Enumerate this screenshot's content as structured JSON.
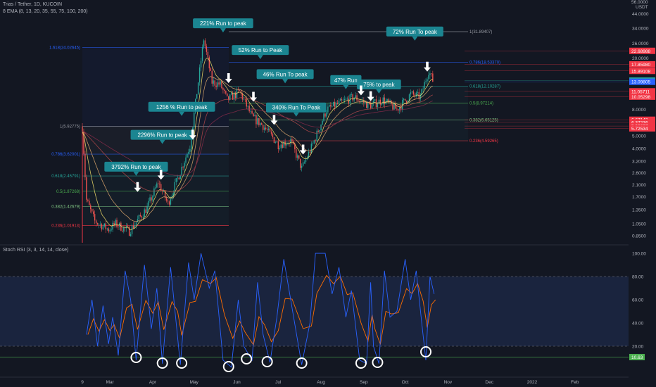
{
  "header": {
    "symbol": "Trias / Tether, 1D, KUCOIN",
    "ema": "8 EMA (8, 13, 20, 35, 55, 75, 100, 200)",
    "stoch_title": "Stoch RSI (3, 3, 14, 14, close)"
  },
  "colors": {
    "bg": "#131722",
    "up": "#26a69a",
    "down": "#ef5350",
    "callout": "#1b8591",
    "fib_blue": "#2962ff",
    "stoch_k": "#2962ff",
    "stoch_d": "#ff6d00",
    "stoch_band": "#1e2a48"
  },
  "chart_data": [
    {
      "type": "candlestick",
      "scale": "log",
      "ylim": [
        0.75,
        56
      ],
      "currency": "USDT",
      "top_tick": "56.0000",
      "y_ticks": [
        "44.0000",
        "34.0000",
        "26.0000",
        "20.0000",
        "16.0000",
        "13.0000",
        "10.0000",
        "8.0000",
        "6.0000",
        "5.0000",
        "4.0000",
        "3.2000",
        "2.6000",
        "2.1000",
        "1.7000",
        "1.3500",
        "1.0500",
        "0.8500"
      ],
      "x_ticks": [
        "9",
        "Mar",
        "Apr",
        "May",
        "Jun",
        "Jul",
        "Aug",
        "Sep",
        "Oct",
        "Nov",
        "Dec",
        "2022",
        "Feb"
      ],
      "price_path": [
        [
          "2021-02-09",
          5.9
        ],
        [
          "2021-02-12",
          1.6
        ],
        [
          "2021-02-18",
          1.1
        ],
        [
          "2021-02-28",
          0.95
        ],
        [
          "2021-03-05",
          1.05
        ],
        [
          "2021-03-15",
          0.92
        ],
        [
          "2021-03-28",
          1.4
        ],
        [
          "2021-04-05",
          2.2
        ],
        [
          "2021-04-12",
          1.5
        ],
        [
          "2021-04-20",
          2.5
        ],
        [
          "2021-04-28",
          4.2
        ],
        [
          "2021-05-08",
          28
        ],
        [
          "2021-05-14",
          13
        ],
        [
          "2021-05-20",
          12.5
        ],
        [
          "2021-05-25",
          9.5
        ],
        [
          "2021-06-03",
          11
        ],
        [
          "2021-06-12",
          7
        ],
        [
          "2021-06-20",
          6
        ],
        [
          "2021-07-01",
          4.3
        ],
        [
          "2021-07-10",
          4.6
        ],
        [
          "2021-07-18",
          2.8
        ],
        [
          "2021-07-26",
          4.3
        ],
        [
          "2021-08-05",
          8
        ],
        [
          "2021-08-15",
          9
        ],
        [
          "2021-08-25",
          10
        ],
        [
          "2021-09-05",
          8.6
        ],
        [
          "2021-09-15",
          9.5
        ],
        [
          "2021-09-25",
          8
        ],
        [
          "2021-10-05",
          10.5
        ],
        [
          "2021-10-12",
          10
        ],
        [
          "2021-10-18",
          16
        ],
        [
          "2021-10-21",
          13.4
        ]
      ],
      "fib_left": [
        {
          "label": "1.618(24.02645)",
          "value": 24.02645,
          "color": "#2962ff"
        },
        {
          "label": "1(5.92775)",
          "value": 5.92775,
          "color": "#9598a1"
        },
        {
          "label": "0.786(3.62001)",
          "value": 3.62001,
          "color": "#2962ff"
        },
        {
          "label": "0.618(2.45791)",
          "value": 2.45791,
          "color": "#26a69a"
        },
        {
          "label": "0.5(1.87268)",
          "value": 1.87268,
          "color": "#4caf50"
        },
        {
          "label": "0.382(1.42679)",
          "value": 1.42679,
          "color": "#81c784"
        },
        {
          "label": "0.236(1.01913)",
          "value": 1.01913,
          "color": "#f23645"
        }
      ],
      "fib_right": [
        {
          "label": "1(31.89407)",
          "value": 31.89407,
          "color": "#9598a1"
        },
        {
          "label": "0.786(18.53370)",
          "value": 18.5337,
          "color": "#2962ff"
        },
        {
          "label": "0.618(12.10287)",
          "value": 12.10287,
          "color": "#26a69a"
        },
        {
          "label": "0.5(8.97214)",
          "value": 8.97214,
          "color": "#4caf50"
        },
        {
          "label": "0.382(6.65125)",
          "value": 6.65125,
          "color": "#81c784"
        },
        {
          "label": "0.236(4.59265)",
          "value": 4.59265,
          "color": "#f23645"
        }
      ],
      "price_labels": [
        {
          "text": "22.68988",
          "value": 22.68988,
          "color": "#f23645"
        },
        {
          "text": "17.85980",
          "value": 17.8598,
          "color": "#f23645"
        },
        {
          "text": "15.89108",
          "value": 15.89108,
          "color": "#f23645"
        },
        {
          "text": "13.37978",
          "value": 13.37978,
          "color": "#26a69a"
        },
        {
          "text": "13.09805",
          "value": 13.09805,
          "color": "#2962ff"
        },
        {
          "text": "11.05711",
          "value": 11.05711,
          "color": "#f23645"
        },
        {
          "text": "10.05298",
          "value": 10.05298,
          "color": "#f23645"
        },
        {
          "text": "6.67143",
          "value": 6.67143,
          "color": "#f23645"
        },
        {
          "text": "6.37236",
          "value": 6.37236,
          "color": "#f23645"
        },
        {
          "text": "5.96607",
          "value": 5.96607,
          "color": "#f23645"
        },
        {
          "text": "5.72534",
          "value": 5.72534,
          "color": "#f23645"
        }
      ],
      "annotations": [
        {
          "text": "3792% Run to peak",
          "date": "2021-03-20",
          "value": 2.9
        },
        {
          "text": "2296% Run to peak",
          "date": "2021-04-08",
          "value": 5.1
        },
        {
          "text": "1256 % Run to peak",
          "date": "2021-04-22",
          "value": 8.4
        },
        {
          "text": "221% Run to peak",
          "date": "2021-05-22",
          "value": 37
        },
        {
          "text": "52% Run to Peak",
          "date": "2021-06-18",
          "value": 23
        },
        {
          "text": "46% Run To peak",
          "date": "2021-07-06",
          "value": 15
        },
        {
          "text": "340% Run To Peak",
          "date": "2021-07-14",
          "value": 8.3
        },
        {
          "text": "47% Run",
          "date": "2021-08-19",
          "value": 13.5
        },
        {
          "text": "75% to peak",
          "date": "2021-09-12",
          "value": 12.5
        },
        {
          "text": "72% Run To peak",
          "date": "2021-10-08",
          "value": 32
        }
      ],
      "arrows": [
        {
          "date": "2021-03-21",
          "value": 1.85
        },
        {
          "date": "2021-04-07",
          "value": 2.3
        },
        {
          "date": "2021-04-30",
          "value": 4.7
        },
        {
          "date": "2021-05-26",
          "value": 12.8
        },
        {
          "date": "2021-06-13",
          "value": 9.2
        },
        {
          "date": "2021-06-28",
          "value": 6.1
        },
        {
          "date": "2021-07-19",
          "value": 3.6
        },
        {
          "date": "2021-08-30",
          "value": 10.3
        },
        {
          "date": "2021-09-06",
          "value": 9.3
        },
        {
          "date": "2021-10-17",
          "value": 15.7
        }
      ]
    },
    {
      "type": "line",
      "name": "Stoch RSI",
      "ylim": [
        0,
        100
      ],
      "y_ticks": [
        100,
        80,
        60,
        40,
        20
      ],
      "upper_band": 80,
      "lower_band": 20,
      "current_value": "10.63",
      "k": [
        [
          "2021-02-12",
          30
        ],
        [
          "2021-02-16",
          60
        ],
        [
          "2021-02-20",
          20
        ],
        [
          "2021-02-24",
          55
        ],
        [
          "2021-02-28",
          22
        ],
        [
          "2021-03-03",
          45
        ],
        [
          "2021-03-07",
          12
        ],
        [
          "2021-03-12",
          85
        ],
        [
          "2021-03-16",
          60
        ],
        [
          "2021-03-20",
          8
        ],
        [
          "2021-03-26",
          90
        ],
        [
          "2021-03-31",
          35
        ],
        [
          "2021-04-04",
          70
        ],
        [
          "2021-04-08",
          5
        ],
        [
          "2021-04-14",
          88
        ],
        [
          "2021-04-18",
          40
        ],
        [
          "2021-04-21",
          4
        ],
        [
          "2021-04-27",
          92
        ],
        [
          "2021-05-01",
          60
        ],
        [
          "2021-05-06",
          100
        ],
        [
          "2021-05-12",
          70
        ],
        [
          "2021-05-16",
          85
        ],
        [
          "2021-05-22",
          8
        ],
        [
          "2021-05-28",
          2
        ],
        [
          "2021-06-02",
          60
        ],
        [
          "2021-06-06",
          20
        ],
        [
          "2021-06-12",
          8
        ],
        [
          "2021-06-16",
          75
        ],
        [
          "2021-06-20",
          30
        ],
        [
          "2021-06-25",
          6
        ],
        [
          "2021-06-30",
          45
        ],
        [
          "2021-07-05",
          95
        ],
        [
          "2021-07-10",
          60
        ],
        [
          "2021-07-18",
          4
        ],
        [
          "2021-07-24",
          40
        ],
        [
          "2021-07-28",
          100
        ],
        [
          "2021-08-04",
          100
        ],
        [
          "2021-08-09",
          65
        ],
        [
          "2021-08-14",
          88
        ],
        [
          "2021-08-19",
          45
        ],
        [
          "2021-08-23",
          68
        ],
        [
          "2021-08-29",
          8
        ],
        [
          "2021-09-03",
          5
        ],
        [
          "2021-09-06",
          75
        ],
        [
          "2021-09-08",
          20
        ],
        [
          "2021-09-12",
          5
        ],
        [
          "2021-09-16",
          85
        ],
        [
          "2021-09-20",
          45
        ],
        [
          "2021-09-25",
          50
        ],
        [
          "2021-10-01",
          95
        ],
        [
          "2021-10-05",
          60
        ],
        [
          "2021-10-09",
          85
        ],
        [
          "2021-10-13",
          40
        ],
        [
          "2021-10-16",
          8
        ],
        [
          "2021-10-19",
          80
        ],
        [
          "2021-10-22",
          65
        ]
      ]
    }
  ]
}
